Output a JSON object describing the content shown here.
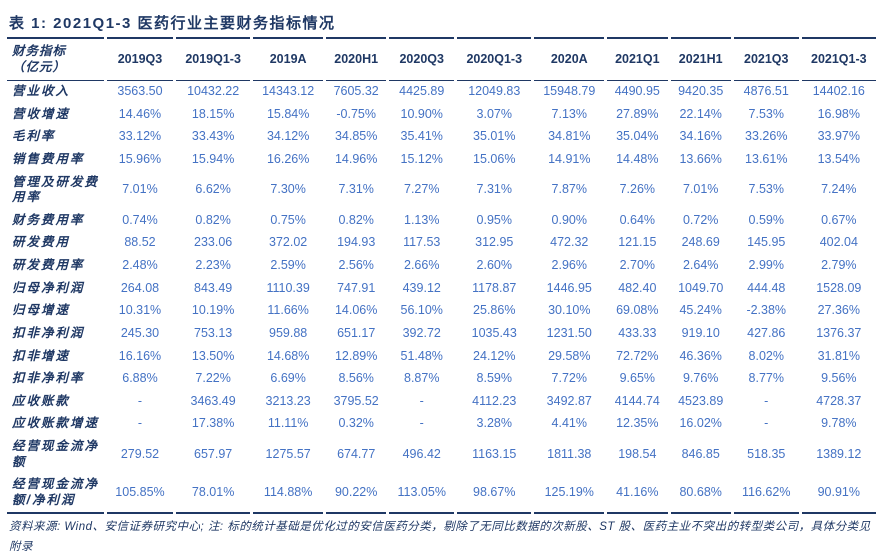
{
  "page": {
    "title": "表 1: 2021Q1-3 医药行业主要财务指标情况",
    "footnote": "资料来源: Wind、安信证券研究中心; 注: 标的统计基础是优化过的安信医药分类，剔除了无同比数据的次新股、ST 股、医药主业不突出的转型类公司，具体分类见附录"
  },
  "colors": {
    "heading_navy": "#1F3864",
    "value_blue": "#4472C4"
  },
  "table": {
    "header": {
      "label": "财务指标\n（亿元）",
      "columns": [
        "2019Q3",
        "2019Q1-3",
        "2019A",
        "2020H1",
        "2020Q3",
        "2020Q1-3",
        "2020A",
        "2021Q1",
        "2021H1",
        "2021Q3",
        "2021Q1-3"
      ]
    },
    "rows": [
      {
        "label": "营业收入",
        "values": [
          "3563.50",
          "10432.22",
          "14343.12",
          "7605.32",
          "4425.89",
          "12049.83",
          "15948.79",
          "4490.95",
          "9420.35",
          "4876.51",
          "14402.16"
        ]
      },
      {
        "label": "营收增速",
        "values": [
          "14.46%",
          "18.15%",
          "15.84%",
          "-0.75%",
          "10.90%",
          "3.07%",
          "7.13%",
          "27.89%",
          "22.14%",
          "7.53%",
          "16.98%"
        ]
      },
      {
        "label": "毛利率",
        "values": [
          "33.12%",
          "33.43%",
          "34.12%",
          "34.85%",
          "35.41%",
          "35.01%",
          "34.81%",
          "35.04%",
          "34.16%",
          "33.26%",
          "33.97%"
        ]
      },
      {
        "label": "销售费用率",
        "values": [
          "15.96%",
          "15.94%",
          "16.26%",
          "14.96%",
          "15.12%",
          "15.06%",
          "14.91%",
          "14.48%",
          "13.66%",
          "13.61%",
          "13.54%"
        ]
      },
      {
        "label": "管理及研发费用率",
        "values": [
          "7.01%",
          "6.62%",
          "7.30%",
          "7.31%",
          "7.27%",
          "7.31%",
          "7.87%",
          "7.26%",
          "7.01%",
          "7.53%",
          "7.24%"
        ]
      },
      {
        "label": "财务费用率",
        "values": [
          "0.74%",
          "0.82%",
          "0.75%",
          "0.82%",
          "1.13%",
          "0.95%",
          "0.90%",
          "0.64%",
          "0.72%",
          "0.59%",
          "0.67%"
        ]
      },
      {
        "label": "研发费用",
        "values": [
          "88.52",
          "233.06",
          "372.02",
          "194.93",
          "117.53",
          "312.95",
          "472.32",
          "121.15",
          "248.69",
          "145.95",
          "402.04"
        ]
      },
      {
        "label": "研发费用率",
        "values": [
          "2.48%",
          "2.23%",
          "2.59%",
          "2.56%",
          "2.66%",
          "2.60%",
          "2.96%",
          "2.70%",
          "2.64%",
          "2.99%",
          "2.79%"
        ]
      },
      {
        "label": "归母净利润",
        "values": [
          "264.08",
          "843.49",
          "1110.39",
          "747.91",
          "439.12",
          "1178.87",
          "1446.95",
          "482.40",
          "1049.70",
          "444.48",
          "1528.09"
        ]
      },
      {
        "label": "归母增速",
        "values": [
          "10.31%",
          "10.19%",
          "11.66%",
          "14.06%",
          "56.10%",
          "25.86%",
          "30.10%",
          "69.08%",
          "45.24%",
          "-2.38%",
          "27.36%"
        ]
      },
      {
        "label": "扣非净利润",
        "values": [
          "245.30",
          "753.13",
          "959.88",
          "651.17",
          "392.72",
          "1035.43",
          "1231.50",
          "433.33",
          "919.10",
          "427.86",
          "1376.37"
        ]
      },
      {
        "label": "扣非增速",
        "values": [
          "16.16%",
          "13.50%",
          "14.68%",
          "12.89%",
          "51.48%",
          "24.12%",
          "29.58%",
          "72.72%",
          "46.36%",
          "8.02%",
          "31.81%"
        ]
      },
      {
        "label": "扣非净利率",
        "values": [
          "6.88%",
          "7.22%",
          "6.69%",
          "8.56%",
          "8.87%",
          "8.59%",
          "7.72%",
          "9.65%",
          "9.76%",
          "8.77%",
          "9.56%"
        ]
      },
      {
        "label": "应收账款",
        "values": [
          "-",
          "3463.49",
          "3213.23",
          "3795.52",
          "-",
          "4112.23",
          "3492.87",
          "4144.74",
          "4523.89",
          "-",
          "4728.37"
        ]
      },
      {
        "label": "应收账款增速",
        "values": [
          "-",
          "17.38%",
          "11.11%",
          "0.32%",
          "-",
          "3.28%",
          "4.41%",
          "12.35%",
          "16.02%",
          "-",
          "9.78%"
        ]
      },
      {
        "label": "经营现金流净额",
        "values": [
          "279.52",
          "657.97",
          "1275.57",
          "674.77",
          "496.42",
          "1163.15",
          "1811.38",
          "198.54",
          "846.85",
          "518.35",
          "1389.12"
        ]
      },
      {
        "label": "经营现金流净额/净利润",
        "values": [
          "105.85%",
          "78.01%",
          "114.88%",
          "90.22%",
          "113.05%",
          "98.67%",
          "125.19%",
          "41.16%",
          "80.68%",
          "116.62%",
          "90.91%"
        ]
      }
    ]
  }
}
